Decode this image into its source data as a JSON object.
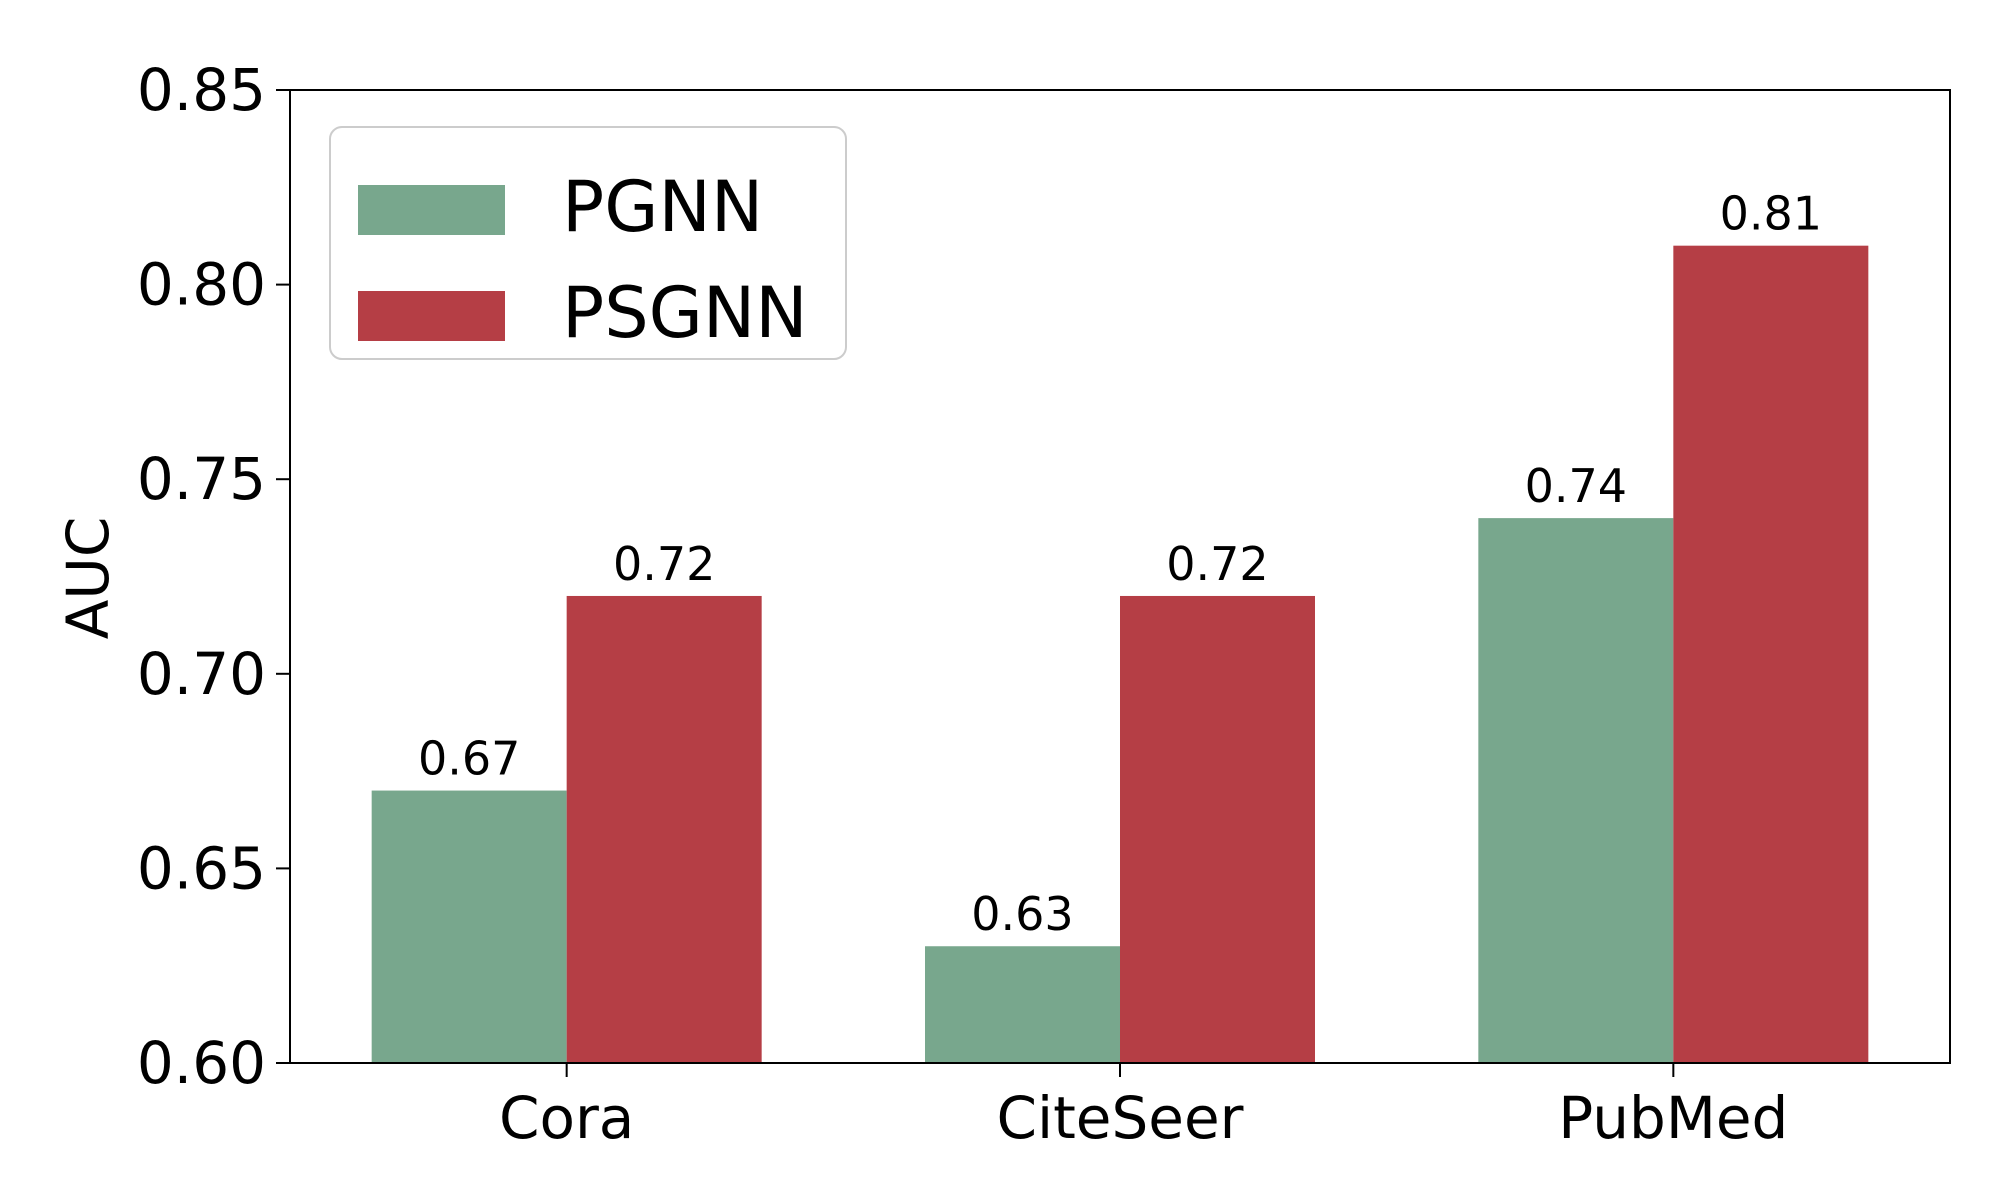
{
  "chart_data": {
    "type": "bar",
    "title": "",
    "xlabel": "",
    "ylabel": "AUC",
    "categories": [
      "Cora",
      "CiteSeer",
      "PubMed"
    ],
    "series": [
      {
        "name": "PGNN",
        "values": [
          0.67,
          0.63,
          0.74
        ],
        "labels": [
          "0.67",
          "0.63",
          "0.74"
        ],
        "color": "#78a78d"
      },
      {
        "name": "PSGNN",
        "values": [
          0.72,
          0.72,
          0.81
        ],
        "labels": [
          "0.72",
          "0.72",
          "0.81"
        ],
        "color": "#b53e45"
      }
    ],
    "ylim": [
      0.6,
      0.85
    ],
    "yticks": [
      0.6,
      0.65,
      0.7,
      0.75,
      0.8,
      0.85
    ],
    "ytick_labels": [
      "0.60",
      "0.65",
      "0.70",
      "0.75",
      "0.80",
      "0.85"
    ],
    "grid": false,
    "legend_position": "top-left",
    "frame_color": "#000000",
    "legend_border_color": "#cccccc"
  }
}
